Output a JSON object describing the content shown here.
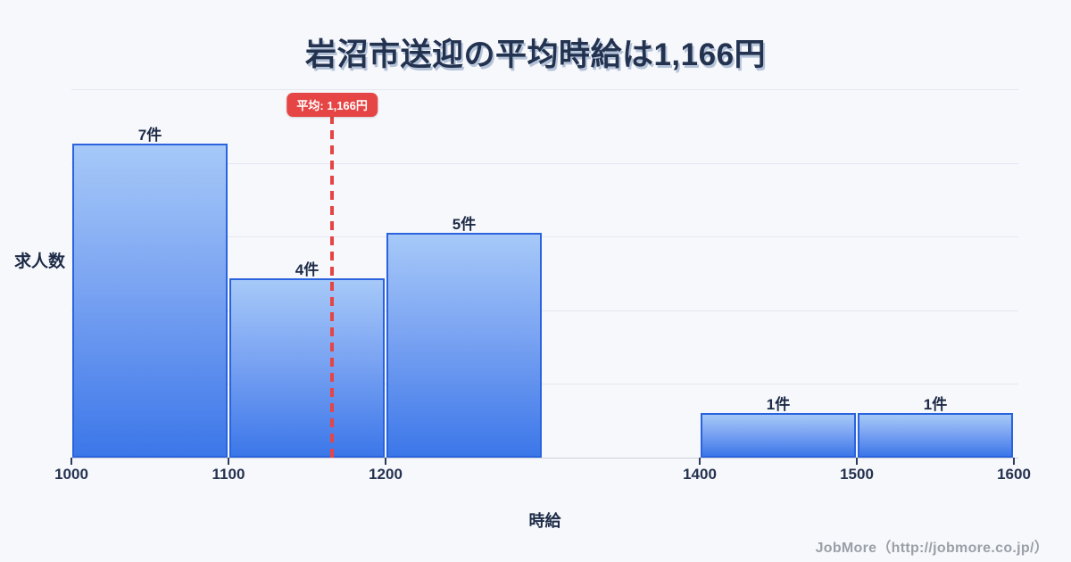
{
  "title": "岩沼市送迎の平均時給は1,166円",
  "footer": "JobMore（http://jobmore.co.jp/）",
  "chart_data": {
    "type": "bar",
    "subtype": "histogram",
    "title": "岩沼市送迎の平均時給は1,166円",
    "xlabel": "時給",
    "ylabel": "求人数",
    "bins": [
      {
        "range": [
          1000,
          1100
        ],
        "count": 7,
        "label": "7件"
      },
      {
        "range": [
          1100,
          1200
        ],
        "count": 4,
        "label": "4件"
      },
      {
        "range": [
          1200,
          1300
        ],
        "count": 5,
        "label": "5件"
      },
      {
        "range": [
          1400,
          1500
        ],
        "count": 1,
        "label": "1件"
      },
      {
        "range": [
          1500,
          1600
        ],
        "count": 1,
        "label": "1件"
      }
    ],
    "x_ticks": [
      1000,
      1100,
      1200,
      1400,
      1500,
      1600
    ],
    "x_range": [
      1000,
      1600
    ],
    "y_range": [
      0,
      8
    ],
    "grid": "horizontal",
    "average": 1166,
    "average_label": "平均: 1,166円",
    "colors": {
      "bar_fill_top": "#a6c9f8",
      "bar_fill_bottom": "#3c77e9",
      "bar_border": "#2a63dd",
      "average_red": "#e64545",
      "text_navy": "#22324f",
      "footer_gray": "#9ba0a8",
      "background": "#f7f8fc",
      "gridline": "#e4e7f0"
    }
  }
}
